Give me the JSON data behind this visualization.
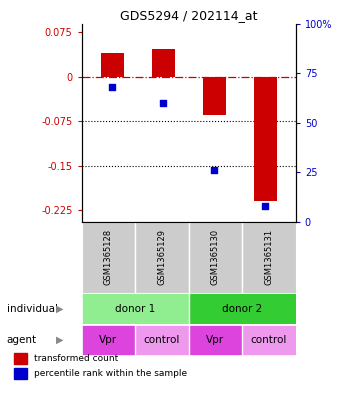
{
  "title": "GDS5294 / 202114_at",
  "samples": [
    "GSM1365128",
    "GSM1365129",
    "GSM1365130",
    "GSM1365131"
  ],
  "bar_values": [
    0.04,
    0.047,
    -0.065,
    -0.21
  ],
  "scatter_values": [
    68,
    60,
    26,
    8
  ],
  "ylim_left": [
    -0.245,
    0.09
  ],
  "ylim_right": [
    0,
    100
  ],
  "yticks_left": [
    0.075,
    0,
    -0.075,
    -0.15,
    -0.225
  ],
  "yticks_right": [
    100,
    75,
    50,
    25,
    0
  ],
  "bar_color": "#cc0000",
  "scatter_color": "#0000cc",
  "dotted_lines": [
    -0.075,
    -0.15
  ],
  "individual_labels": [
    "donor 1",
    "donor 2"
  ],
  "individual_colors": [
    "#90ee90",
    "#33cc33"
  ],
  "agent_labels": [
    "Vpr",
    "control",
    "Vpr",
    "control"
  ],
  "agent_colors": [
    "#dd44dd",
    "#ee99ee",
    "#dd44dd",
    "#ee99ee"
  ],
  "row_label_individual": "individual",
  "row_label_agent": "agent",
  "legend_bar_label": "transformed count",
  "legend_scatter_label": "percentile rank within the sample",
  "sample_bg": "#cccccc",
  "title_fontsize": 9,
  "tick_fontsize": 7,
  "label_fontsize": 7.5,
  "legend_fontsize": 6.5
}
